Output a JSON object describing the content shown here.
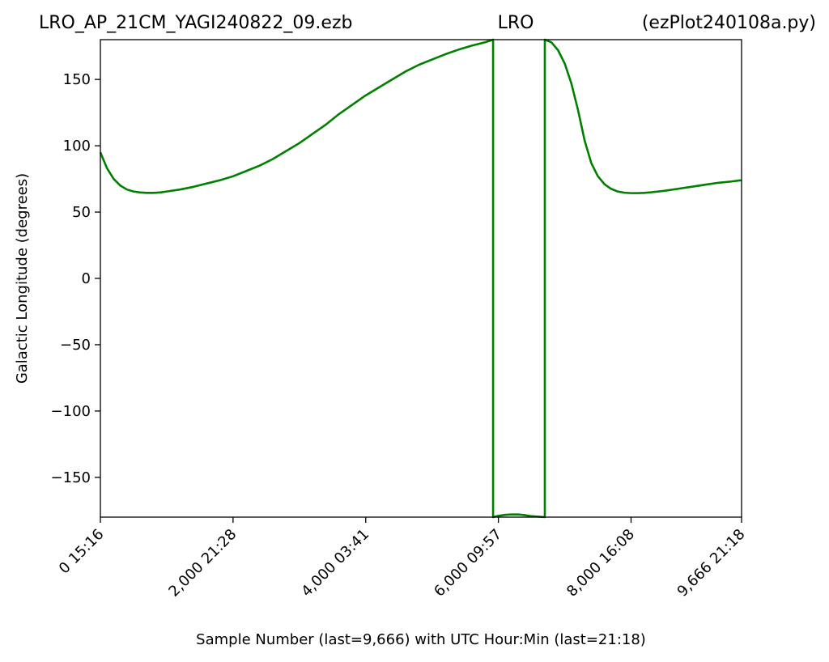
{
  "title_left": "LRO_AP_21CM_YAGI240822_09.ezb",
  "title_center": "LRO",
  "title_right": "(ezPlot240108a.py)",
  "chart_data": {
    "type": "line",
    "xlabel": "Sample Number (last=9,666) with UTC Hour:Min (last=21:18)",
    "ylabel": "Galactic Longitude (degrees)",
    "xlim": [
      0,
      9666
    ],
    "ylim": [
      -180,
      180
    ],
    "grid": false,
    "line_color": "#008000",
    "x_ticks": [
      {
        "value": 0,
        "label": "0  15:16"
      },
      {
        "value": 2000,
        "label": "2,000  21:28"
      },
      {
        "value": 4000,
        "label": "4,000  03:41"
      },
      {
        "value": 6000,
        "label": "6,000  09:57"
      },
      {
        "value": 8000,
        "label": "8,000  16:08"
      },
      {
        "value": 9666,
        "label": "9,666  21:18"
      }
    ],
    "y_ticks": [
      {
        "value": 150,
        "label": "150"
      },
      {
        "value": 100,
        "label": "100"
      },
      {
        "value": 50,
        "label": "50"
      },
      {
        "value": 0,
        "label": "0"
      },
      {
        "value": -50,
        "label": "−50"
      },
      {
        "value": -100,
        "label": "−100"
      },
      {
        "value": -150,
        "label": "−150"
      }
    ],
    "series": [
      {
        "points": [
          [
            0,
            95
          ],
          [
            100,
            83
          ],
          [
            200,
            75
          ],
          [
            300,
            70
          ],
          [
            400,
            67
          ],
          [
            500,
            65.5
          ],
          [
            600,
            64.8
          ],
          [
            700,
            64.5
          ],
          [
            800,
            64.5
          ],
          [
            900,
            64.8
          ],
          [
            1000,
            65.5
          ],
          [
            1200,
            67
          ],
          [
            1400,
            69
          ],
          [
            1600,
            71.5
          ],
          [
            1800,
            74
          ],
          [
            2000,
            77
          ],
          [
            2200,
            81
          ],
          [
            2400,
            85
          ],
          [
            2600,
            90
          ],
          [
            2800,
            96
          ],
          [
            3000,
            102
          ],
          [
            3200,
            109
          ],
          [
            3400,
            116
          ],
          [
            3600,
            124
          ],
          [
            3800,
            131
          ],
          [
            4000,
            138
          ],
          [
            4200,
            144
          ],
          [
            4400,
            150
          ],
          [
            4600,
            156
          ],
          [
            4800,
            161
          ],
          [
            5000,
            165
          ],
          [
            5200,
            169
          ],
          [
            5400,
            172.5
          ],
          [
            5600,
            175.5
          ],
          [
            5800,
            178
          ],
          [
            5920,
            180
          ],
          [
            5920,
            -180
          ],
          [
            6000,
            -179
          ],
          [
            6100,
            -178.3
          ],
          [
            6200,
            -178
          ],
          [
            6300,
            -178
          ],
          [
            6400,
            -178.5
          ],
          [
            6500,
            -179.3
          ],
          [
            6700,
            -180
          ],
          [
            6700,
            180
          ],
          [
            6800,
            178
          ],
          [
            6900,
            172
          ],
          [
            7000,
            162
          ],
          [
            7100,
            147
          ],
          [
            7200,
            127
          ],
          [
            7300,
            104
          ],
          [
            7400,
            87
          ],
          [
            7500,
            77
          ],
          [
            7600,
            71
          ],
          [
            7700,
            67.5
          ],
          [
            7800,
            65.5
          ],
          [
            7900,
            64.6
          ],
          [
            8000,
            64.3
          ],
          [
            8100,
            64.3
          ],
          [
            8200,
            64.5
          ],
          [
            8300,
            64.9
          ],
          [
            8500,
            66
          ],
          [
            8700,
            67.5
          ],
          [
            8900,
            69
          ],
          [
            9100,
            70.5
          ],
          [
            9300,
            72
          ],
          [
            9500,
            73
          ],
          [
            9666,
            74
          ]
        ]
      }
    ]
  }
}
